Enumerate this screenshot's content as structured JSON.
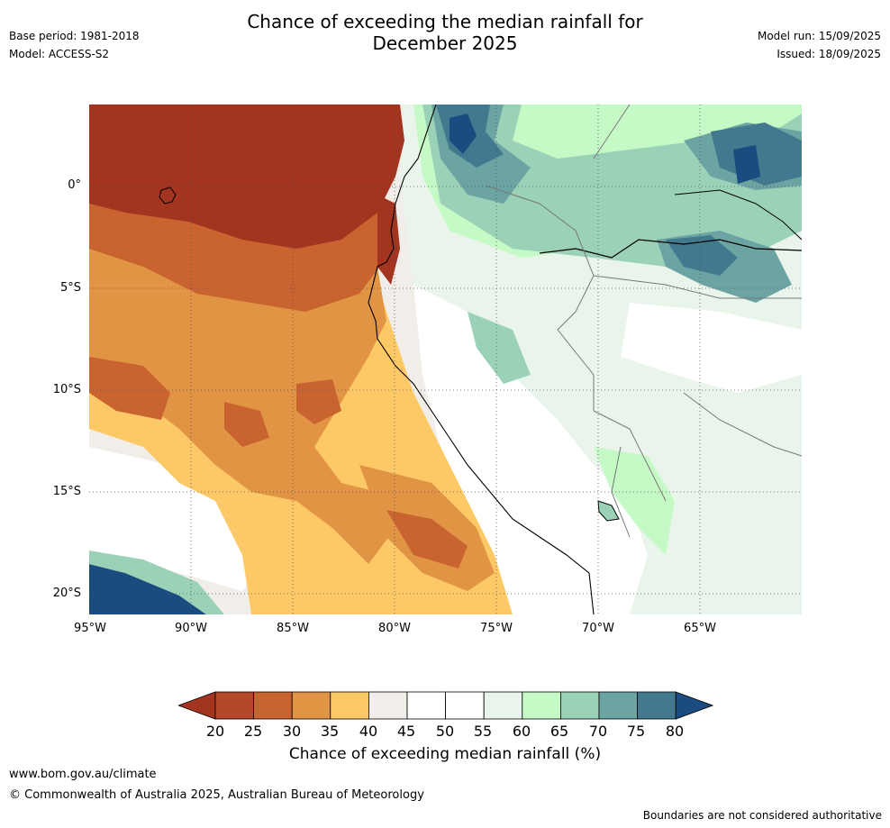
{
  "title_line1": "Chance of exceeding the median rainfall for",
  "title_line2": "December 2025",
  "base_period": "Base period: 1981-2018",
  "model": "Model: ACCESS-S2",
  "model_run": "Model run: 15/09/2025",
  "issued": "Issued: 18/09/2025",
  "lat_labels": [
    "0°",
    "5°S",
    "10°S",
    "15°S",
    "20°S"
  ],
  "lon_labels": [
    "95°W",
    "90°W",
    "85°W",
    "80°W",
    "75°W",
    "70°W",
    "65°W"
  ],
  "colorbar": {
    "title": "Chance of exceeding median rainfall (%)",
    "ticks": [
      "20",
      "25",
      "30",
      "35",
      "40",
      "45",
      "50",
      "55",
      "60",
      "65",
      "70",
      "75",
      "80"
    ],
    "colors": [
      "#a3341f",
      "#b5472a",
      "#c96431",
      "#e09444",
      "#fdc966",
      "#f1eeea",
      "#ffffff",
      "#ffffff",
      "#e9f5ea",
      "#c5fac6",
      "#9bd2b7",
      "#6ba4a3",
      "#43798e",
      "#1a4c80"
    ]
  },
  "website": "www.bom.gov.au/climate",
  "copyright": "© Commonwealth of Australia 2025, Australian Bureau of Meteorology",
  "disclaimer": "Boundaries are not considered authoritative"
}
